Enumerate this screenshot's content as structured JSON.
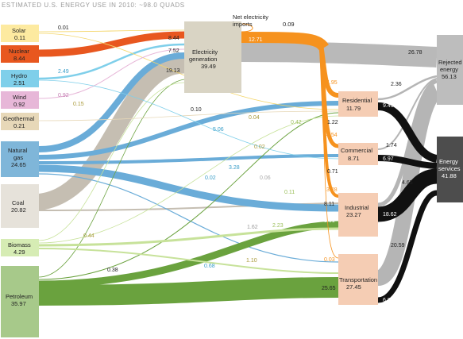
{
  "title": "ESTIMATED U.S. ENERGY USE IN 2010: ~98.0 QUADS",
  "colors": {
    "solar": "#fdeaa0",
    "nuclear": "#e8571f",
    "hydro": "#7fcfea",
    "wind": "#e7b7d8",
    "geothermal": "#e7d8b8",
    "natural_gas": "#7fb6d9",
    "coal": "#c9c3b9",
    "biomass": "#c7e29a",
    "petroleum": "#8bb86a",
    "electricity": "#d9d4c4",
    "rejected": "#bdbdbd",
    "services": "#4d4d4d",
    "sector": "#f5cdb4",
    "elec_flow": "#f6921e",
    "gas_flow": "#6aacd8",
    "coal_flow": "#c5beb2",
    "pet_flow": "#6aa23e",
    "rejected_flow": "#b5b5b5",
    "services_flow": "#111111"
  },
  "sources": [
    {
      "id": "solar",
      "name": "Solar",
      "value": "0.11"
    },
    {
      "id": "nuclear",
      "name": "Nuclear",
      "value": "8.44"
    },
    {
      "id": "hydro",
      "name": "Hydro",
      "value": "2.51"
    },
    {
      "id": "wind",
      "name": "Wind",
      "value": "0.92"
    },
    {
      "id": "geothermal",
      "name": "Geothermal",
      "value": "0.21"
    },
    {
      "id": "natural_gas",
      "name": "Natural gas",
      "value": "24.65"
    },
    {
      "id": "coal",
      "name": "Coal",
      "value": "20.82"
    },
    {
      "id": "biomass",
      "name": "Biomass",
      "value": "4.29"
    },
    {
      "id": "petroleum",
      "name": "Petroleum",
      "value": "35.97"
    }
  ],
  "electricity": {
    "name": "Electricity generation",
    "value": "39.49"
  },
  "net_imports": {
    "name": "Net electricity imports",
    "value": "0.09"
  },
  "sectors": [
    {
      "id": "residential",
      "name": "Residential",
      "value": "11.79"
    },
    {
      "id": "commercial",
      "name": "Commercial",
      "value": "8.71"
    },
    {
      "id": "industrial",
      "name": "Industrial",
      "value": "23.27"
    },
    {
      "id": "transportation",
      "name": "Transportation",
      "value": "27.45"
    }
  ],
  "rejected": {
    "name": "Rejected energy",
    "value": "56.13"
  },
  "services": {
    "name": "Energy services",
    "value": "41.88"
  },
  "flow_labels": {
    "solar_elec": "0.01",
    "nuclear_elec": "8.44",
    "hydro_elec": "2.49",
    "hydro_elec2": "7.52",
    "coal_elec": "19.13",
    "wind_elec": "0.92",
    "wind_x": "0.15",
    "elec_out": "12.71",
    "elec_rejected": "26.78",
    "elec_res": "4.95",
    "elec_com": "4.54",
    "elec_ind": "3.28",
    "elec_tr": "0.03",
    "geo_res": "0.10",
    "gas_res": "5.06",
    "gas_com": "3.28",
    "gas_ind": "8.11",
    "gas_tr": "0.68",
    "gas_x1": "0.04",
    "gas_x2": "0.02",
    "gas_x3": "0.02",
    "coal_x1": "0.06",
    "coal_ind": "1.62",
    "coal_x2": "0.11",
    "bio_ind": "2.23",
    "bio_tr": "1.10",
    "bio_x": "0.44",
    "bio_res": "0.42",
    "pet_x1": "0.38",
    "pet_ind": "8.01",
    "pet_tr": "25.65",
    "res_rej": "2.36",
    "res_srv": "9.43",
    "com_rej": "1.74",
    "com_srv": "6.97",
    "ind_rej": "4.65",
    "ind_srv": "18.62",
    "tr_rej": "20.59",
    "tr_srv": "6.86",
    "res_in": "1.22",
    "com_in": "0.71"
  }
}
